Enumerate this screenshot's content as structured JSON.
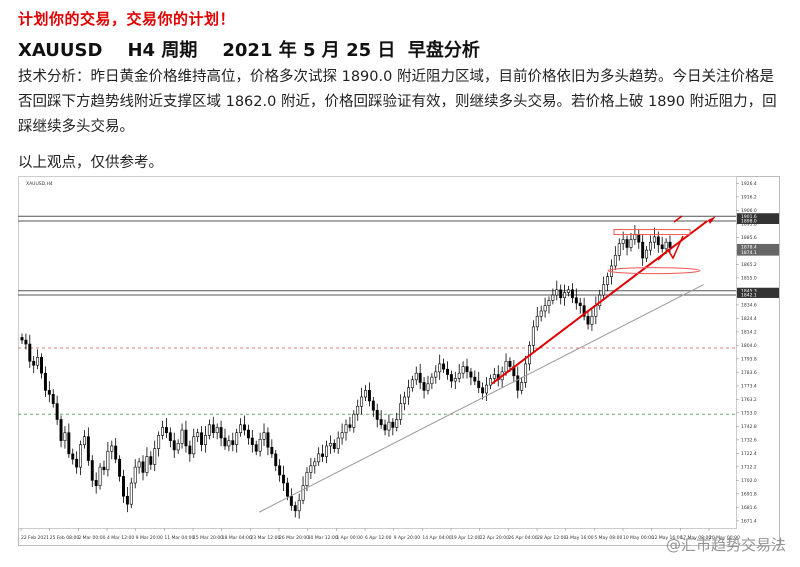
{
  "slogan": "计划你的交易，交易你的计划！",
  "headline": "XAUUSD    H4 周期    2021 年 5 月 25 日  早盘分析",
  "analysis": "技术分析：昨日黄金价格维持高位，价格多次试探 1890.0 附近阻力区域，目前价格依旧为多头趋势。今日关注价格是否回踩下方趋势线附近支撑区域 1862.0 附近，价格回踩验证有效，则继续多头交易。若价格上破 1890 附近阻力，回踩继续多头交易。",
  "note": "以上观点，仅供参考。",
  "watermark": "@汇市趋势交易法",
  "chart_data": {
    "type": "candlestick",
    "symbol_label": "XAUUSD,H4",
    "y_ticks": [
      1926.4,
      1916.2,
      1906.0,
      1895.8,
      1885.6,
      1875.4,
      1865.2,
      1855.0,
      1844.8,
      1834.6,
      1824.4,
      1814.2,
      1804.0,
      1793.8,
      1783.6,
      1773.4,
      1763.2,
      1753.0,
      1742.8,
      1732.6,
      1722.4,
      1712.2,
      1702.0,
      1691.8,
      1681.6,
      1671.4
    ],
    "ylim": [
      1666,
      1932
    ],
    "x_ticks": [
      "22 Feb 2021",
      "25 Feb 08:00",
      "2 Mar 00:00",
      "4 Mar 12:00",
      "9 Mar 20:00",
      "11 Mar 04:00",
      "15 Mar 20:00",
      "18 Mar 04:00",
      "23 Mar 12:00",
      "26 Mar 20:00",
      "30 Mar 12:00",
      "1 Apr 00:00",
      "6 Apr 12:00",
      "9 Apr 20:00",
      "14 Apr 04:00",
      "19 Apr 12:00",
      "22 Apr 20:00",
      "26 Apr 04:00",
      "28 Apr 12:00",
      "3 May 16:00",
      "5 May 08:00",
      "10 May 00:00",
      "12 May 16:00",
      "17 May 08:00",
      "20 May 00:00"
    ],
    "price_markers": {
      "upper_a": 1901.6,
      "upper_b": 1898.0,
      "mid_a": 1845.3,
      "mid_b": 1842.1,
      "current": 1878.4,
      "ask": 1874.1
    },
    "resistance_zone": 1890.0,
    "support_zone": 1862.0,
    "levels": [
      {
        "price": 1901.6,
        "style": "solid",
        "color": "#555555"
      },
      {
        "price": 1898.0,
        "style": "solid",
        "color": "#555555"
      },
      {
        "price": 1845.3,
        "style": "solid",
        "color": "#555555"
      },
      {
        "price": 1842.1,
        "style": "solid",
        "color": "#555555"
      },
      {
        "price": 1802.0,
        "style": "dashed",
        "color": "#e08080"
      },
      {
        "price": 1752.0,
        "style": "dashed",
        "color": "#66aa66"
      }
    ],
    "trendlines": [
      {
        "from": [
          0.336,
          1678
        ],
        "to": [
          0.955,
          1850
        ],
        "color": "#999999"
      },
      {
        "from": [
          0.66,
          1775
        ],
        "to": [
          0.96,
          1898
        ],
        "color": "#e00000"
      }
    ],
    "closes": [
      1808,
      1805,
      1792,
      1789,
      1795,
      1783,
      1770,
      1767,
      1760,
      1748,
      1732,
      1738,
      1722,
      1718,
      1712,
      1729,
      1735,
      1717,
      1702,
      1698,
      1712,
      1710,
      1724,
      1728,
      1718,
      1705,
      1690,
      1684,
      1700,
      1712,
      1716,
      1708,
      1720,
      1714,
      1726,
      1736,
      1742,
      1738,
      1732,
      1725,
      1730,
      1740,
      1728,
      1722,
      1735,
      1738,
      1729,
      1736,
      1744,
      1738,
      1742,
      1734,
      1728,
      1732,
      1729,
      1738,
      1744,
      1740,
      1734,
      1729,
      1724,
      1733,
      1738,
      1727,
      1722,
      1713,
      1706,
      1700,
      1690,
      1683,
      1679,
      1687,
      1698,
      1708,
      1713,
      1716,
      1722,
      1720,
      1728,
      1730,
      1726,
      1734,
      1738,
      1744,
      1742,
      1752,
      1758,
      1765,
      1770,
      1762,
      1755,
      1748,
      1744,
      1740,
      1746,
      1742,
      1748,
      1760,
      1765,
      1772,
      1778,
      1783,
      1776,
      1770,
      1775,
      1780,
      1784,
      1790,
      1786,
      1782,
      1777,
      1779,
      1783,
      1788,
      1784,
      1780,
      1777,
      1772,
      1768,
      1774,
      1779,
      1782,
      1778,
      1784,
      1792,
      1788,
      1781,
      1770,
      1776,
      1790,
      1804,
      1818,
      1826,
      1830,
      1834,
      1838,
      1842,
      1846,
      1840,
      1844,
      1846,
      1840,
      1836,
      1834,
      1826,
      1820,
      1826,
      1834,
      1842,
      1850,
      1856,
      1864,
      1872,
      1881,
      1884,
      1878,
      1884,
      1888,
      1882,
      1870,
      1876,
      1882,
      1886,
      1880,
      1877,
      1882,
      1878
    ]
  }
}
